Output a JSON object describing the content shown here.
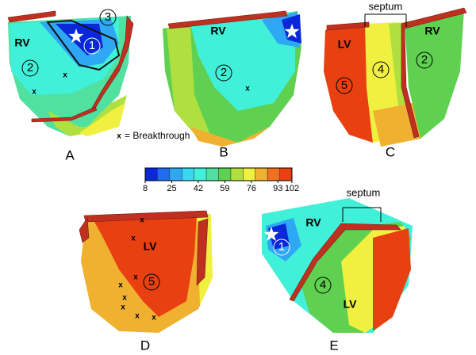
{
  "panels": [
    {
      "label": "A",
      "texts": [
        "RV",
        "3",
        "1",
        "2"
      ],
      "marks": [
        "x",
        "x"
      ]
    },
    {
      "label": "B",
      "texts": [
        "RV",
        "2"
      ],
      "marks": [
        "x"
      ]
    },
    {
      "label": "C",
      "texts": [
        "septum",
        "LV",
        "RV",
        "5",
        "4",
        "2"
      ],
      "marks": []
    },
    {
      "label": "D",
      "texts": [
        "LV",
        "5"
      ],
      "marks": [
        "x",
        "x",
        "x",
        "x",
        "x",
        "x",
        "x",
        "x"
      ]
    },
    {
      "label": "E",
      "texts": [
        "RV",
        "1",
        "septum",
        "4",
        "LV"
      ],
      "marks": []
    }
  ],
  "note": {
    "symbol": "x",
    "text": "= Breakthrough"
  },
  "colorbar": {
    "ticks": [
      8,
      25,
      42,
      59,
      76,
      93,
      102
    ],
    "colors": [
      "#0a28d8",
      "#1e6cf0",
      "#2ea8f4",
      "#38d8f0",
      "#40f0d8",
      "#50e0a0",
      "#60d050",
      "#b0e040",
      "#f0f040",
      "#f0b030",
      "#f07020",
      "#e84010"
    ]
  }
}
